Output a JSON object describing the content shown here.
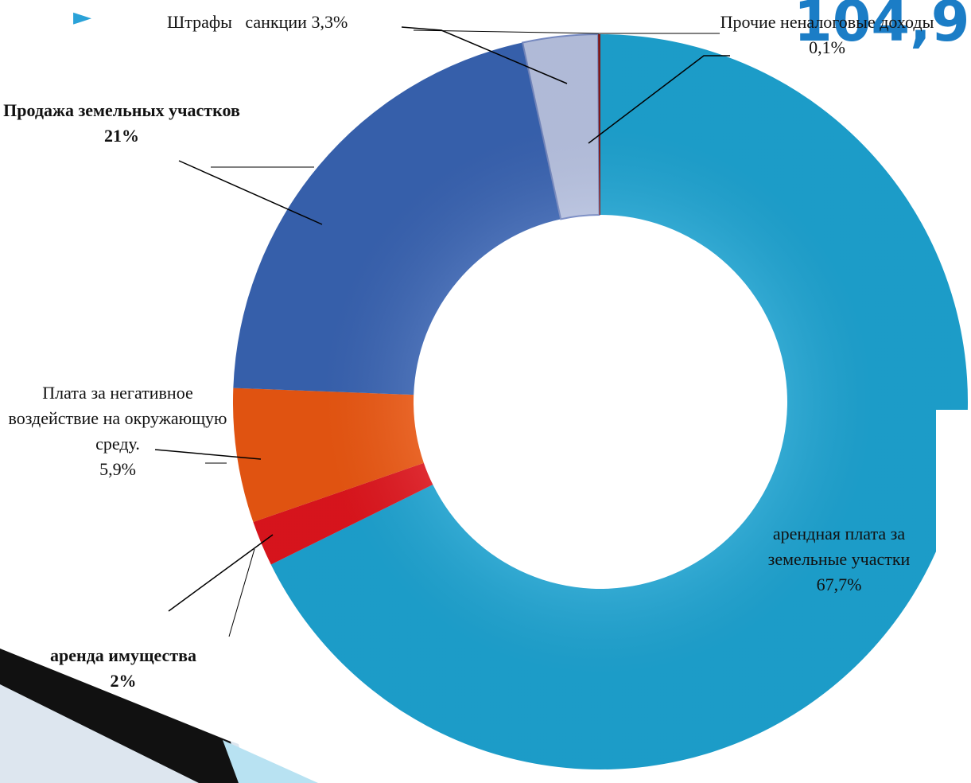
{
  "bullet": "►",
  "chart_data": {
    "type": "pie",
    "donut": true,
    "annotation": "104,9",
    "categories": [
      "арендная плата за земельные участки",
      "аренда имущества",
      "Плата за негативное воздействие на окружающую среду.",
      "Продажа земельных участков",
      "Штрафы   санкции",
      "Прочие неналоговые доходы"
    ],
    "values": [
      67.7,
      2,
      5.9,
      21,
      3.3,
      0.1
    ],
    "value_labels": [
      "67,7%",
      "2%",
      "5,9%",
      "21%",
      "3,3%",
      "0,1%"
    ],
    "colors": [
      "#1ea9d9",
      "#e8161e",
      "#f45a12",
      "#3b67b9",
      "#bfcaea",
      "#8a1b1b"
    ]
  }
}
